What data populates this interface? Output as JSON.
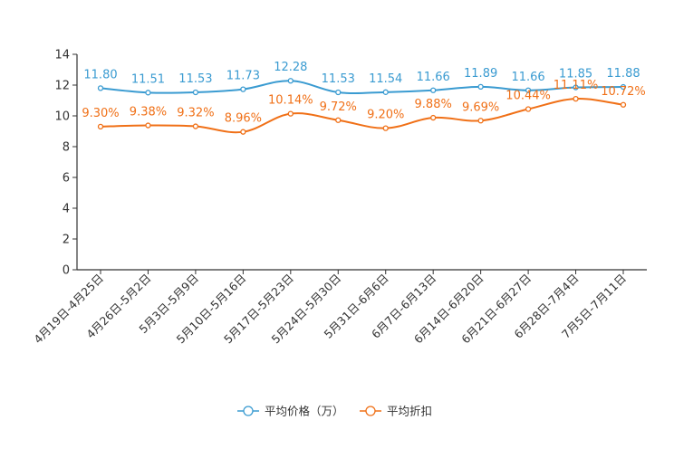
{
  "chart_data": {
    "type": "line",
    "title": "",
    "xlabel": "",
    "ylabel": "",
    "ylim": [
      0,
      14
    ],
    "yticks": [
      "0",
      "2",
      "4",
      "6",
      "8",
      "10",
      "12",
      "14"
    ],
    "categories": [
      "4月19日-4月25日",
      "4月26日-5月2日",
      "5月3日-5月9日",
      "5月10日-5月16日",
      "5月17日-5月23日",
      "5月24日-5月30日",
      "5月31日-6月6日",
      "6月7日-6月13日",
      "6月14日-6月20日",
      "6月21日-6月27日",
      "6月28日-7月4日",
      "7月5日-7月11日"
    ],
    "series": [
      {
        "name": "平均价格（万）",
        "color": "#3a9bd1",
        "values": [
          11.8,
          11.51,
          11.53,
          11.73,
          12.28,
          11.53,
          11.54,
          11.66,
          11.89,
          11.66,
          11.85,
          11.88
        ],
        "labels": [
          "11.80",
          "11.51",
          "11.53",
          "11.73",
          "12.28",
          "11.53",
          "11.54",
          "11.66",
          "11.89",
          "11.66",
          "11.85",
          "11.88"
        ]
      },
      {
        "name": "平均折扣",
        "color": "#f07017",
        "values": [
          9.3,
          9.38,
          9.32,
          8.96,
          10.14,
          9.72,
          9.2,
          9.88,
          9.69,
          10.44,
          11.11,
          10.72
        ],
        "labels": [
          "9.30%",
          "9.38%",
          "9.32%",
          "8.96%",
          "10.14%",
          "9.72%",
          "9.20%",
          "9.88%",
          "9.69%",
          "10.44%",
          "11.11%",
          "10.72%"
        ]
      }
    ],
    "legend_position": "bottom-center",
    "grid": false
  }
}
